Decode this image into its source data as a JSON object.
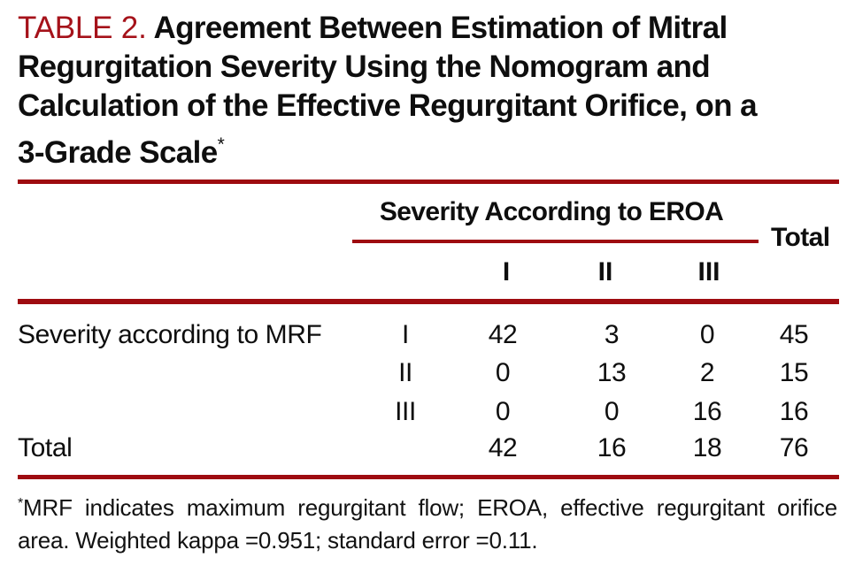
{
  "colors": {
    "accent_red": "#9e0b10",
    "label_red": "#a5121a"
  },
  "title": {
    "label": "TABLE 2.",
    "lines": [
      "Agreement Between Estimation of Mitral",
      "Regurgitation Severity Using the Nomogram and",
      "Calculation of the Effective Regurgitant Orifice, on a",
      "3-Grade Scale"
    ],
    "footnote_marker": "*"
  },
  "table": {
    "spanner_header": "Severity According to EROA",
    "total_header": "Total",
    "col_headers": [
      "I",
      "II",
      "III"
    ],
    "rows": [
      {
        "label": "Severity according to MRF",
        "grade": "I",
        "values": [
          "42",
          "3",
          "0",
          "45"
        ]
      },
      {
        "label": "",
        "grade": "II",
        "values": [
          "0",
          "13",
          "2",
          "15"
        ]
      },
      {
        "label": "",
        "grade": "III",
        "values": [
          "0",
          "0",
          "16",
          "16"
        ]
      },
      {
        "label": "Total",
        "grade": "",
        "values": [
          "42",
          "16",
          "18",
          "76"
        ]
      }
    ]
  },
  "footnote": {
    "marker": "*",
    "line1": "MRF indicates maximum regurgitant flow; EROA, effective regurgitant orifice",
    "line2": "area. Weighted kappa =0.951; standard error =0.11."
  }
}
